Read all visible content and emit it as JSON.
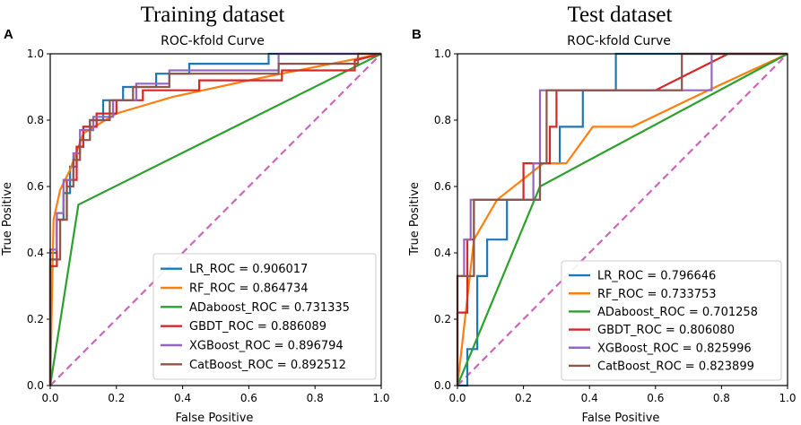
{
  "chart_data": [
    {
      "type": "line",
      "panel_label": "A",
      "header": "Training dataset",
      "title": "ROC-kfold Curve",
      "xlabel": "False Positive",
      "ylabel": "True Positive",
      "xlim": [
        0,
        1
      ],
      "ylim": [
        0,
        1
      ],
      "xticks": [
        "0.0",
        "0.2",
        "0.4",
        "0.6",
        "0.8",
        "1.0"
      ],
      "yticks": [
        "0.0",
        "0.2",
        "0.4",
        "0.6",
        "0.8",
        "1.0"
      ],
      "grid": false,
      "legend_position": "bottom-right",
      "reference_line": {
        "style": "dashed",
        "color": "#cc66b8",
        "x": [
          0,
          1
        ],
        "y": [
          0,
          1
        ]
      },
      "series": [
        {
          "name": "LR_ROC = 0.906017",
          "color": "#1f77b4",
          "x": [
            0,
            0,
            0.02,
            0.02,
            0.04,
            0.04,
            0.06,
            0.06,
            0.08,
            0.08,
            0.1,
            0.1,
            0.12,
            0.12,
            0.16,
            0.16,
            0.22,
            0.22,
            0.32,
            0.32,
            0.42,
            0.42,
            0.66,
            0.66,
            1.0
          ],
          "y": [
            0,
            0.4,
            0.4,
            0.5,
            0.5,
            0.58,
            0.58,
            0.66,
            0.66,
            0.72,
            0.72,
            0.78,
            0.78,
            0.8,
            0.8,
            0.86,
            0.86,
            0.9,
            0.9,
            0.94,
            0.94,
            0.97,
            0.97,
            1.0,
            1.0
          ]
        },
        {
          "name": "RF_ROC = 0.864734",
          "color": "#ff7f0e",
          "x": [
            0,
            0.01,
            0.03,
            0.06,
            0.1,
            0.2,
            0.37,
            0.6,
            0.85,
            1.0
          ],
          "y": [
            0,
            0.5,
            0.59,
            0.65,
            0.76,
            0.82,
            0.87,
            0.92,
            0.97,
            1.0
          ]
        },
        {
          "name": "ADaboost_ROC = 0.731335",
          "color": "#2ca02c",
          "x": [
            0,
            0.085,
            1.0
          ],
          "y": [
            0,
            0.545,
            1.0
          ]
        },
        {
          "name": "GBDT_ROC = 0.886089",
          "color": "#d62728",
          "x": [
            0,
            0,
            0.02,
            0.02,
            0.05,
            0.05,
            0.08,
            0.08,
            0.1,
            0.1,
            0.14,
            0.14,
            0.2,
            0.2,
            0.28,
            0.28,
            0.45,
            0.45,
            0.7,
            0.7,
            0.92,
            0.92,
            1.0
          ],
          "y": [
            0,
            0.36,
            0.36,
            0.5,
            0.5,
            0.62,
            0.62,
            0.72,
            0.72,
            0.78,
            0.78,
            0.82,
            0.82,
            0.86,
            0.86,
            0.89,
            0.89,
            0.92,
            0.92,
            0.95,
            0.95,
            0.98,
            1.0
          ]
        },
        {
          "name": "XGBoost_ROC = 0.896794",
          "color": "#9467bd",
          "x": [
            0,
            0,
            0.02,
            0.02,
            0.04,
            0.04,
            0.07,
            0.07,
            0.09,
            0.09,
            0.13,
            0.13,
            0.19,
            0.19,
            0.26,
            0.26,
            0.36,
            0.36,
            0.69,
            0.69,
            1.0
          ],
          "y": [
            0,
            0.41,
            0.41,
            0.52,
            0.52,
            0.62,
            0.62,
            0.7,
            0.7,
            0.77,
            0.77,
            0.81,
            0.81,
            0.86,
            0.86,
            0.91,
            0.91,
            0.95,
            0.95,
            1.0,
            1.0
          ]
        },
        {
          "name": "CatBoost_ROC = 0.892512",
          "color": "#8c564b",
          "x": [
            0,
            0,
            0.03,
            0.03,
            0.05,
            0.05,
            0.07,
            0.07,
            0.09,
            0.09,
            0.12,
            0.12,
            0.18,
            0.18,
            0.25,
            0.25,
            0.36,
            0.36,
            0.69,
            0.69,
            0.93,
            0.93,
            1.0
          ],
          "y": [
            0,
            0.38,
            0.38,
            0.5,
            0.5,
            0.6,
            0.6,
            0.68,
            0.68,
            0.74,
            0.74,
            0.8,
            0.8,
            0.86,
            0.86,
            0.9,
            0.9,
            0.94,
            0.94,
            0.97,
            0.97,
            1.0,
            1.0
          ]
        }
      ]
    },
    {
      "type": "line",
      "panel_label": "B",
      "header": "Test dataset",
      "title": "ROC-kfold Curve",
      "xlabel": "False Positive",
      "ylabel": "True Positive",
      "xlim": [
        0,
        1
      ],
      "ylim": [
        0,
        1
      ],
      "xticks": [
        "0.0",
        "0.2",
        "0.4",
        "0.6",
        "0.8",
        "1.0"
      ],
      "yticks": [
        "0.0",
        "0.2",
        "0.4",
        "0.6",
        "0.8",
        "1.0"
      ],
      "grid": false,
      "legend_position": "bottom-right",
      "reference_line": {
        "style": "dashed",
        "color": "#cc66b8",
        "x": [
          0,
          1
        ],
        "y": [
          0,
          1
        ]
      },
      "series": [
        {
          "name": "LR_ROC = 0.796646",
          "color": "#1f77b4",
          "x": [
            0,
            0.03,
            0.03,
            0.06,
            0.06,
            0.09,
            0.09,
            0.15,
            0.15,
            0.25,
            0.25,
            0.31,
            0.31,
            0.38,
            0.38,
            0.48,
            0.48,
            1.0
          ],
          "y": [
            0,
            0,
            0.11,
            0.11,
            0.33,
            0.33,
            0.44,
            0.44,
            0.56,
            0.56,
            0.67,
            0.67,
            0.78,
            0.78,
            0.89,
            0.89,
            1.0,
            1.0
          ]
        },
        {
          "name": "RF_ROC = 0.733753",
          "color": "#ff7f0e",
          "x": [
            0,
            0.05,
            0.12,
            0.26,
            0.33,
            0.41,
            0.53,
            0.76,
            1.0
          ],
          "y": [
            0,
            0.44,
            0.56,
            0.67,
            0.67,
            0.78,
            0.78,
            0.89,
            1.0
          ]
        },
        {
          "name": "ADaboost_ROC = 0.701258",
          "color": "#2ca02c",
          "x": [
            0,
            0.25,
            1.0
          ],
          "y": [
            0,
            0.6,
            1.0
          ]
        },
        {
          "name": "GBDT_ROC = 0.806080",
          "color": "#d62728",
          "x": [
            0,
            0,
            0.03,
            0.03,
            0.05,
            0.05,
            0.2,
            0.2,
            0.28,
            0.28,
            0.3,
            0.3,
            0.34,
            0.34,
            0.6,
            0.6,
            0.82,
            1.0
          ],
          "y": [
            0,
            0.22,
            0.22,
            0.44,
            0.44,
            0.56,
            0.56,
            0.67,
            0.67,
            0.78,
            0.78,
            0.89,
            0.89,
            0.89,
            0.89,
            0.89,
            1.0,
            1.0
          ]
        },
        {
          "name": "XGBoost_ROC = 0.825996",
          "color": "#9467bd",
          "x": [
            0,
            0,
            0.02,
            0.02,
            0.04,
            0.04,
            0.05,
            0.05,
            0.23,
            0.23,
            0.25,
            0.25,
            0.77,
            0.77,
            1.0
          ],
          "y": [
            0,
            0.33,
            0.33,
            0.44,
            0.44,
            0.56,
            0.56,
            0.56,
            0.56,
            0.67,
            0.67,
            0.89,
            0.89,
            1.0,
            1.0
          ]
        },
        {
          "name": "CatBoost_ROC = 0.823899",
          "color": "#8c564b",
          "x": [
            0,
            0,
            0.05,
            0.05,
            0.25,
            0.25,
            0.27,
            0.27,
            0.68,
            0.68,
            1.0
          ],
          "y": [
            0,
            0.33,
            0.33,
            0.56,
            0.56,
            0.67,
            0.67,
            0.89,
            0.89,
            1.0,
            1.0
          ]
        }
      ]
    }
  ]
}
